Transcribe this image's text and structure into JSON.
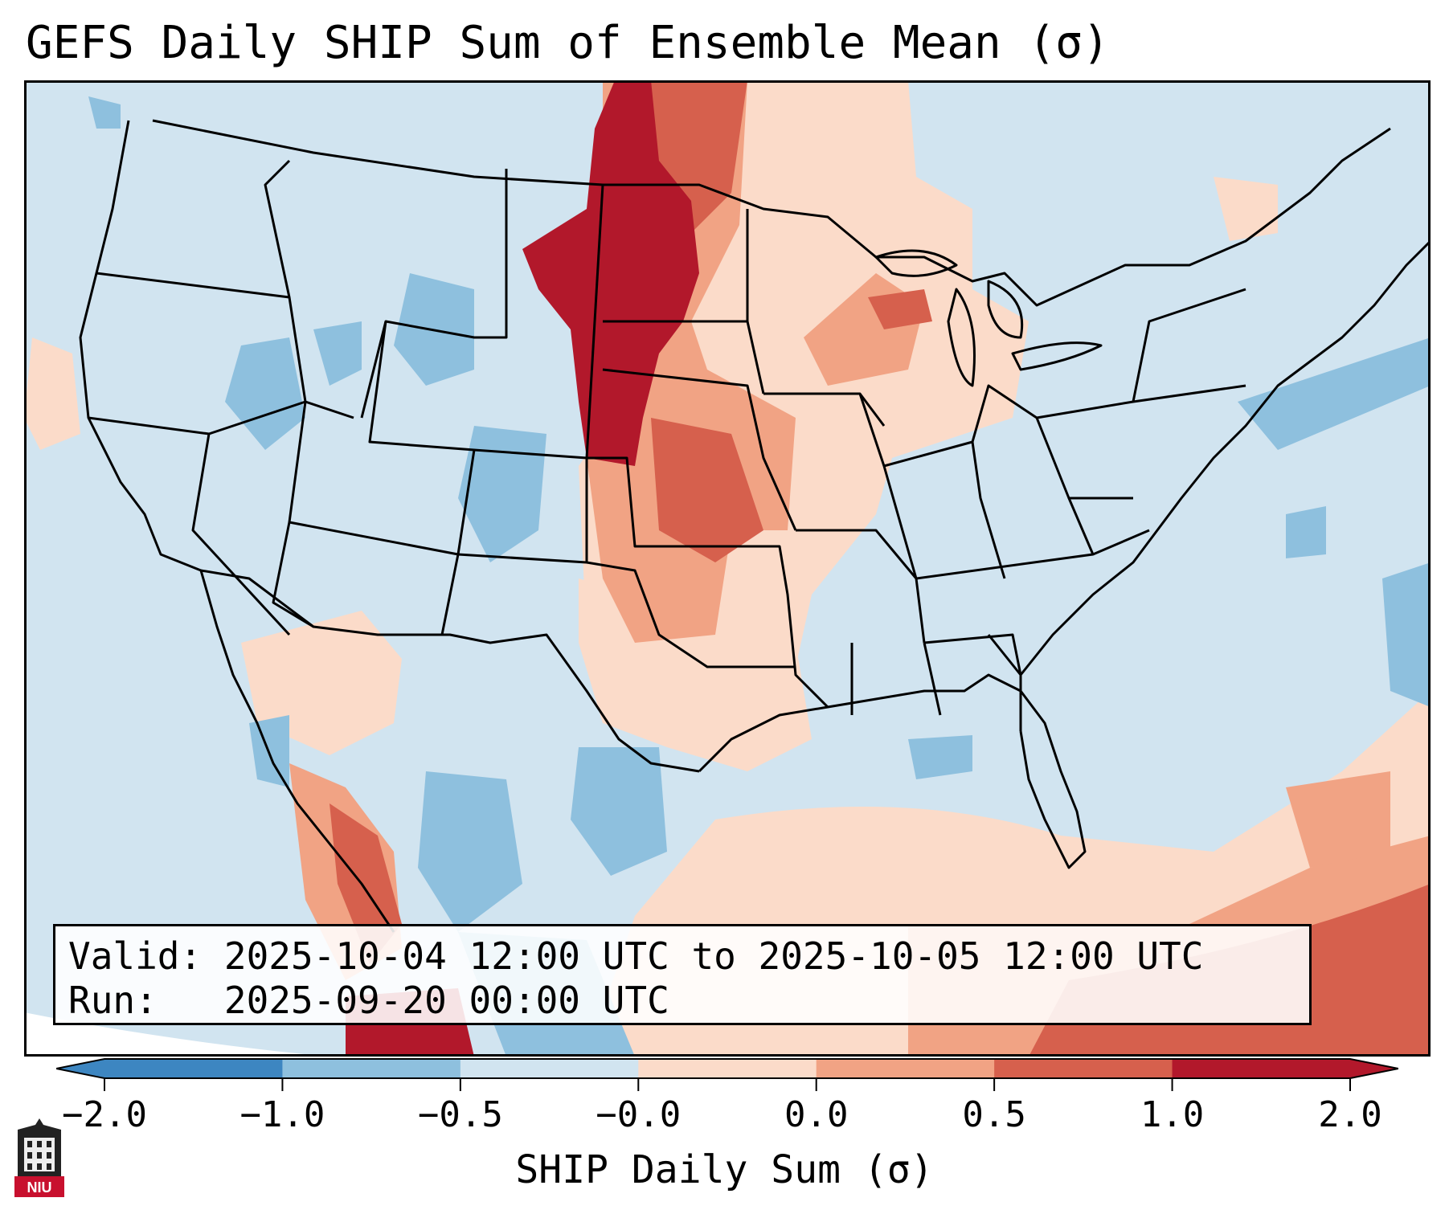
{
  "title": "GEFS Daily SHIP Sum of Ensemble Mean (σ)",
  "info": {
    "valid_label": "Valid:",
    "valid_value": "2025-10-04 12:00 UTC to 2025-10-05 12:00 UTC",
    "run_label": "Run:",
    "run_value": "2025-09-20 00:00 UTC"
  },
  "colorbar": {
    "label": "SHIP Daily Sum (σ)",
    "ticks": [
      "−2.0",
      "−1.0",
      "−0.5",
      "−0.0",
      "0.0",
      "0.5",
      "1.0",
      "2.0"
    ],
    "colors": [
      "#3d86c1",
      "#8ec0de",
      "#d1e4f0",
      "#fbdbc9",
      "#f1a384",
      "#d6604d",
      "#b2182b"
    ],
    "extend": "both"
  },
  "palette": {
    "background": "#d1e4f0",
    "ocean_outside": "#ffffff",
    "border": "#000000"
  },
  "logo": {
    "text": "NIU",
    "color": "#c8102e"
  }
}
